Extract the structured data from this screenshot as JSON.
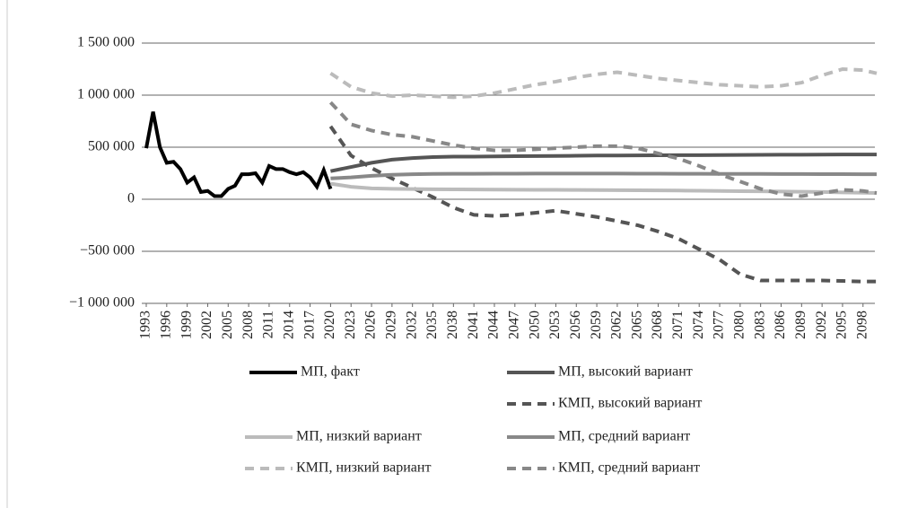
{
  "chart_data": {
    "type": "line",
    "ylim": [
      -1000000,
      1500000
    ],
    "yticks": [
      {
        "value": -1000000,
        "label": "−1 000 000"
      },
      {
        "value": -500000,
        "label": "−500 000"
      },
      0,
      {
        "value": 500000,
        "label": "500 000"
      },
      {
        "value": 1000000,
        "label": "1 000 000"
      },
      {
        "value": 1500000,
        "label": "1 500 000"
      }
    ],
    "xlim": [
      1993,
      2100
    ],
    "xticks": [
      1993,
      1996,
      1999,
      2002,
      2005,
      2008,
      2011,
      2014,
      2017,
      2020,
      2023,
      2026,
      2029,
      2032,
      2035,
      2038,
      2041,
      2044,
      2047,
      2050,
      2053,
      2056,
      2059,
      2062,
      2065,
      2068,
      2071,
      2074,
      2077,
      2080,
      2083,
      2086,
      2089,
      2092,
      2095,
      2098
    ],
    "grid": true,
    "series": [
      {
        "name": "МП, факт",
        "color": "#000000",
        "dash": false,
        "x": [
          1993,
          1994,
          1995,
          1996,
          1997,
          1998,
          1999,
          2000,
          2001,
          2002,
          2003,
          2004,
          2005,
          2006,
          2007,
          2008,
          2009,
          2010,
          2011,
          2012,
          2013,
          2014,
          2015,
          2016,
          2017,
          2018,
          2019,
          2020
        ],
        "values": [
          490000,
          840000,
          500000,
          350000,
          360000,
          290000,
          160000,
          210000,
          70000,
          80000,
          30000,
          30000,
          100000,
          130000,
          240000,
          240000,
          250000,
          160000,
          320000,
          290000,
          290000,
          260000,
          240000,
          260000,
          210000,
          120000,
          280000,
          100000
        ]
      },
      {
        "name": "МП, высокий вариант",
        "color": "#555555",
        "dash": false,
        "x": [
          2020,
          2023,
          2026,
          2029,
          2032,
          2035,
          2038,
          2041,
          2044,
          2047,
          2050,
          2053,
          2056,
          2059,
          2062,
          2065,
          2068,
          2071,
          2074,
          2077,
          2080,
          2083,
          2086,
          2089,
          2092,
          2095,
          2098,
          2100
        ],
        "values": [
          270000,
          310000,
          350000,
          380000,
          395000,
          405000,
          410000,
          410000,
          412000,
          414000,
          415000,
          416000,
          418000,
          420000,
          420000,
          421000,
          422000,
          423000,
          424000,
          425000,
          426000,
          427000,
          428000,
          428000,
          429000,
          430000,
          430000,
          430000
        ]
      },
      {
        "name": "КМП, высокий вариант",
        "color": "#555555",
        "dash": true,
        "x": [
          2020,
          2023,
          2026,
          2029,
          2032,
          2035,
          2038,
          2041,
          2044,
          2047,
          2050,
          2053,
          2056,
          2059,
          2062,
          2065,
          2068,
          2071,
          2074,
          2077,
          2080,
          2083,
          2086,
          2089,
          2092,
          2095,
          2098,
          2100
        ],
        "values": [
          700000,
          420000,
          300000,
          200000,
          110000,
          20000,
          -80000,
          -150000,
          -160000,
          -150000,
          -130000,
          -110000,
          -140000,
          -170000,
          -210000,
          -250000,
          -310000,
          -380000,
          -480000,
          -580000,
          -720000,
          -780000,
          -780000,
          -780000,
          -780000,
          -785000,
          -790000,
          -790000
        ]
      },
      {
        "name": "МП, низкий вариант",
        "color": "#bbbbbb",
        "dash": false,
        "x": [
          2020,
          2023,
          2026,
          2029,
          2032,
          2035,
          2038,
          2041,
          2044,
          2047,
          2050,
          2053,
          2056,
          2059,
          2062,
          2065,
          2068,
          2071,
          2074,
          2077,
          2080,
          2083,
          2086,
          2089,
          2092,
          2095,
          2098,
          2100
        ],
        "values": [
          150000,
          120000,
          105000,
          100000,
          98000,
          96000,
          95000,
          94000,
          93000,
          92000,
          91000,
          90000,
          89000,
          88000,
          87000,
          86000,
          85000,
          84000,
          82000,
          80000,
          78000,
          76000,
          74000,
          72000,
          70000,
          66000,
          62000,
          60000
        ]
      },
      {
        "name": "МП, средний вариант",
        "color": "#888888",
        "dash": false,
        "x": [
          2020,
          2023,
          2026,
          2029,
          2032,
          2035,
          2038,
          2041,
          2044,
          2047,
          2050,
          2053,
          2056,
          2059,
          2062,
          2065,
          2068,
          2071,
          2074,
          2077,
          2080,
          2083,
          2086,
          2089,
          2092,
          2095,
          2098,
          2100
        ],
        "values": [
          200000,
          210000,
          225000,
          235000,
          240000,
          243000,
          245000,
          245000,
          246000,
          246000,
          247000,
          247000,
          247000,
          247000,
          247000,
          246000,
          246000,
          245000,
          245000,
          244000,
          244000,
          243000,
          242000,
          242000,
          241000,
          241000,
          240000,
          240000
        ]
      },
      {
        "name": "КМП, низкий вариант",
        "color": "#bbbbbb",
        "dash": true,
        "x": [
          2020,
          2023,
          2026,
          2029,
          2032,
          2035,
          2038,
          2041,
          2044,
          2047,
          2050,
          2053,
          2056,
          2059,
          2062,
          2065,
          2068,
          2071,
          2074,
          2077,
          2080,
          2083,
          2086,
          2089,
          2092,
          2095,
          2098,
          2100
        ],
        "values": [
          1210000,
          1080000,
          1020000,
          990000,
          1000000,
          990000,
          980000,
          990000,
          1020000,
          1060000,
          1100000,
          1130000,
          1170000,
          1200000,
          1220000,
          1190000,
          1160000,
          1140000,
          1120000,
          1100000,
          1090000,
          1080000,
          1090000,
          1120000,
          1190000,
          1250000,
          1240000,
          1210000
        ]
      },
      {
        "name": "КМП, средний вариант",
        "color": "#888888",
        "dash": true,
        "x": [
          2020,
          2023,
          2026,
          2029,
          2032,
          2035,
          2038,
          2041,
          2044,
          2047,
          2050,
          2053,
          2056,
          2059,
          2062,
          2065,
          2068,
          2071,
          2074,
          2077,
          2080,
          2083,
          2086,
          2089,
          2092,
          2095,
          2098,
          2100
        ],
        "values": [
          930000,
          720000,
          660000,
          620000,
          600000,
          560000,
          520000,
          490000,
          470000,
          470000,
          480000,
          490000,
          500000,
          510000,
          510000,
          490000,
          440000,
          390000,
          320000,
          240000,
          170000,
          100000,
          50000,
          30000,
          60000,
          90000,
          80000,
          60000
        ]
      }
    ]
  }
}
